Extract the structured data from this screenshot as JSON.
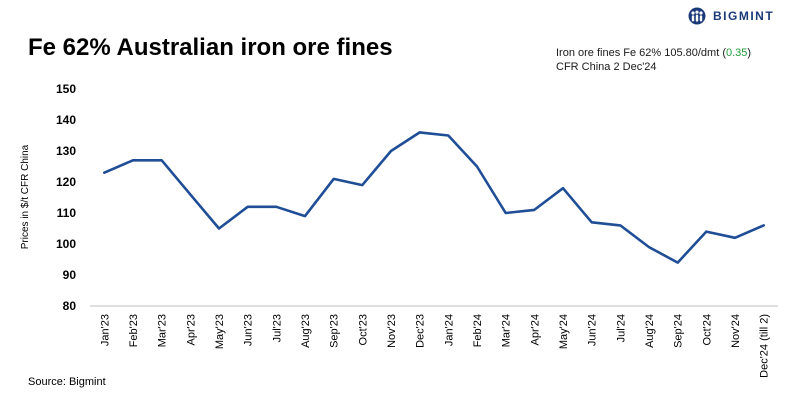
{
  "brand": {
    "name": "BIGMINT",
    "icon": "bigmint-people-logo-icon",
    "color": "#1b3a78"
  },
  "header": {
    "title": "Fe 62% Australian iron ore fines",
    "info_prefix": "Iron ore fines Fe 62% 105.80/dmt (",
    "info_change": "0.35",
    "info_suffix": ")",
    "info_line2": "CFR China 2 Dec'24",
    "change_color": "#1f9c3a"
  },
  "footer": {
    "source": "Source: Bigmint"
  },
  "chart_data": {
    "type": "line",
    "title": "Fe 62% Australian iron ore fines",
    "xlabel": "",
    "ylabel": "Prices in $/t CFR China",
    "categories": [
      "Jan'23",
      "Feb'23",
      "Mar'23",
      "Apr'23",
      "May'23",
      "Jun'23",
      "Jul'23",
      "Aug'23",
      "Sep'23",
      "Oct'23",
      "Nov'23",
      "Dec'23",
      "Jan'24",
      "Feb'24",
      "Mar'24",
      "Apr'24",
      "May'24",
      "Jun'24",
      "Jul'24",
      "Aug'24",
      "Sep'24",
      "Oct'24",
      "Nov'24",
      "Dec'24 (till 2)"
    ],
    "series": [
      {
        "values": [
          123,
          127,
          127,
          116,
          105,
          112,
          112,
          109,
          121,
          119,
          130,
          136,
          135,
          125,
          110,
          111,
          118,
          107,
          106,
          99,
          94,
          104,
          102,
          106
        ],
        "color": "#1f4e96"
      }
    ],
    "ylim": [
      80,
      150
    ],
    "yticks": [
      80,
      90,
      100,
      110,
      120,
      130,
      140,
      150
    ],
    "grid": false,
    "legend": "none"
  }
}
